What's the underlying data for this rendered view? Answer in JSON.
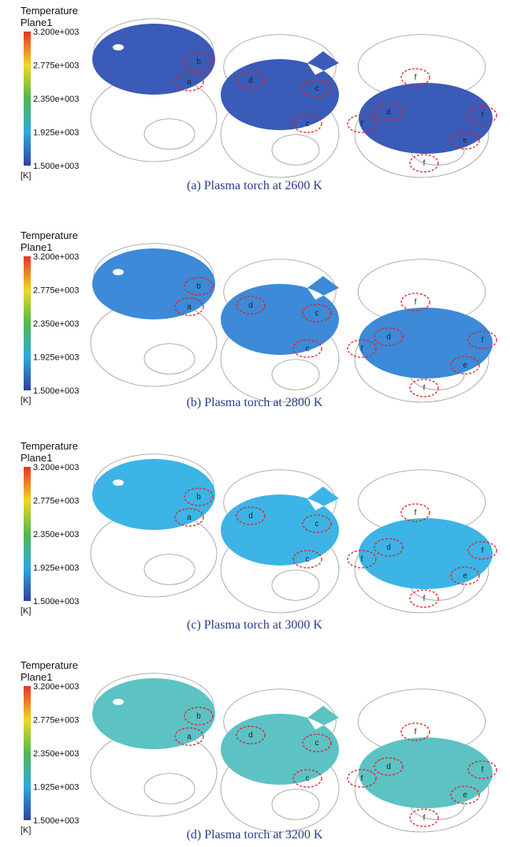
{
  "panels": [
    {
      "legend": {
        "title": "Temperature",
        "variable": "Plane1",
        "ticks": [
          "3.200e+003",
          "2.775e+003",
          "2.350e+003",
          "1.925e+003",
          "1.500e+003"
        ],
        "unit": "[K]"
      },
      "labels": [
        "b",
        "a",
        "d",
        "c",
        "c",
        "f",
        "d",
        "f",
        "f",
        "e",
        "f"
      ],
      "caption": "(a) Plasma torch at 2600 K"
    },
    {
      "legend": {
        "title": "Temperature",
        "variable": "Plane1",
        "ticks": [
          "3.200e+003",
          "2.775e+003",
          "2.350e+003",
          "1.925e+003",
          "1.500e+003"
        ],
        "unit": "[K]"
      },
      "labels": [
        "b",
        "a",
        "d",
        "c",
        "c",
        "f",
        "d",
        "f",
        "f",
        "e",
        "f"
      ],
      "caption": "(b) Plasma torch at 2800 K"
    },
    {
      "legend": {
        "title": "Temperature",
        "variable": "Plane1",
        "ticks": [
          "3.200e+003",
          "2.775e+003",
          "2.350e+003",
          "1.925e+003",
          "1.500e+003"
        ],
        "unit": "[K]"
      },
      "labels": [
        "b",
        "a",
        "d",
        "c",
        "c",
        "f",
        "d",
        "f",
        "f",
        "e",
        "f"
      ],
      "caption": "(c) Plasma torch at 3000 K"
    },
    {
      "legend": {
        "title": "Temperature",
        "variable": "Plane1",
        "ticks": [
          "3.200e+003",
          "2.775e+003",
          "2.350e+003",
          "1.925e+003",
          "1.500e+003"
        ],
        "unit": "[K]"
      },
      "labels": [
        "b",
        "a",
        "d",
        "c",
        "c",
        "f",
        "d",
        "f",
        "f",
        "e",
        "f"
      ],
      "caption": "(d) Plasma torch at 3200 K"
    }
  ]
}
